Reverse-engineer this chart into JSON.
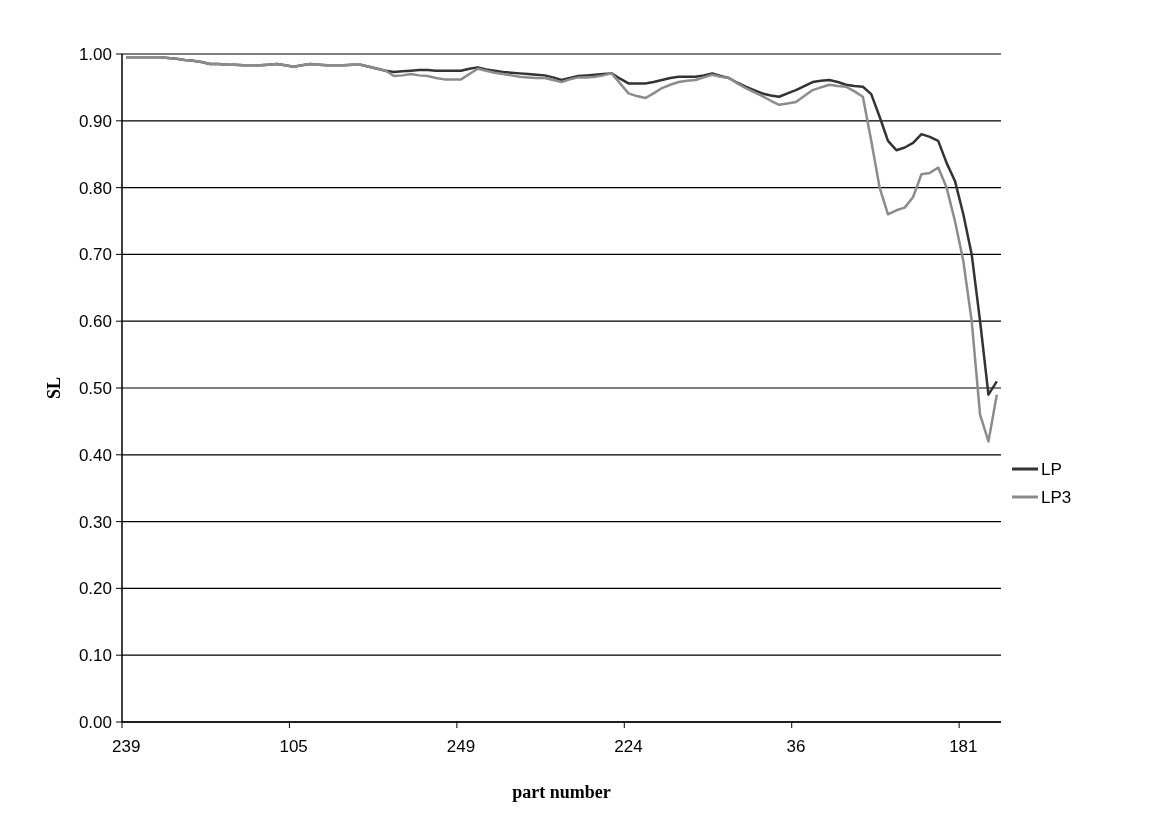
{
  "chart_data": {
    "type": "line",
    "xlabel": "part number",
    "ylabel": "SL",
    "categories": [
      "239",
      null,
      null,
      null,
      null,
      null,
      null,
      null,
      null,
      null,
      null,
      null,
      null,
      null,
      null,
      null,
      null,
      null,
      null,
      null,
      "105",
      null,
      null,
      null,
      null,
      null,
      null,
      null,
      null,
      null,
      null,
      null,
      null,
      null,
      null,
      null,
      null,
      null,
      null,
      null,
      "249",
      null,
      null,
      null,
      null,
      null,
      null,
      null,
      null,
      null,
      null,
      null,
      null,
      null,
      null,
      null,
      null,
      null,
      null,
      null,
      "224",
      null,
      null,
      null,
      null,
      null,
      null,
      null,
      null,
      null,
      null,
      null,
      null,
      null,
      null,
      null,
      null,
      null,
      null,
      null,
      "36",
      null,
      null,
      null,
      null,
      null,
      null,
      null,
      null,
      null,
      null,
      null,
      null,
      null,
      null,
      null,
      null,
      null,
      null,
      null,
      "181",
      null,
      null,
      null,
      null
    ],
    "series": [
      {
        "name": "LP",
        "color": "#333333",
        "values": [
          0.995,
          0.995,
          0.995,
          0.995,
          0.995,
          0.994,
          0.993,
          0.991,
          0.99,
          0.988,
          0.985,
          0.985,
          0.984,
          0.984,
          0.983,
          0.983,
          0.983,
          0.984,
          0.985,
          0.983,
          0.981,
          0.983,
          0.985,
          0.984,
          0.983,
          0.983,
          0.983,
          0.984,
          0.984,
          0.981,
          0.978,
          0.975,
          0.973,
          0.974,
          0.975,
          0.976,
          0.976,
          0.975,
          0.975,
          0.975,
          0.975,
          0.978,
          0.98,
          0.977,
          0.975,
          0.973,
          0.972,
          0.971,
          0.97,
          0.969,
          0.968,
          0.965,
          0.961,
          0.964,
          0.967,
          0.968,
          0.969,
          0.97,
          0.971,
          0.963,
          0.956,
          0.956,
          0.956,
          0.958,
          0.961,
          0.964,
          0.966,
          0.966,
          0.966,
          0.968,
          0.971,
          0.967,
          0.964,
          0.957,
          0.951,
          0.946,
          0.941,
          0.938,
          0.936,
          0.941,
          0.946,
          0.952,
          0.958,
          0.96,
          0.961,
          0.958,
          0.954,
          0.952,
          0.951,
          0.94,
          0.906,
          0.87,
          0.856,
          0.86,
          0.867,
          0.88,
          0.876,
          0.87,
          0.837,
          0.81,
          0.76,
          0.7,
          0.6,
          0.49,
          0.51
        ]
      },
      {
        "name": "LP3",
        "color": "#8c8c8c",
        "values": [
          0.995,
          0.995,
          0.995,
          0.995,
          0.995,
          0.994,
          0.993,
          0.991,
          0.99,
          0.988,
          0.985,
          0.985,
          0.984,
          0.984,
          0.983,
          0.983,
          0.983,
          0.984,
          0.985,
          0.983,
          0.981,
          0.983,
          0.985,
          0.984,
          0.983,
          0.983,
          0.983,
          0.984,
          0.984,
          0.981,
          0.978,
          0.975,
          0.967,
          0.968,
          0.97,
          0.968,
          0.967,
          0.964,
          0.962,
          0.962,
          0.962,
          0.97,
          0.978,
          0.975,
          0.972,
          0.97,
          0.968,
          0.966,
          0.965,
          0.964,
          0.964,
          0.961,
          0.958,
          0.962,
          0.965,
          0.965,
          0.966,
          0.968,
          0.971,
          0.956,
          0.941,
          0.937,
          0.934,
          0.941,
          0.949,
          0.954,
          0.958,
          0.96,
          0.961,
          0.965,
          0.969,
          0.966,
          0.964,
          0.956,
          0.949,
          0.943,
          0.937,
          0.93,
          0.924,
          0.926,
          0.928,
          0.937,
          0.946,
          0.95,
          0.954,
          0.952,
          0.951,
          0.944,
          0.936,
          0.87,
          0.8,
          0.76,
          0.766,
          0.77,
          0.786,
          0.82,
          0.822,
          0.83,
          0.8,
          0.75,
          0.69,
          0.6,
          0.46,
          0.42,
          0.49
        ]
      }
    ],
    "ylim": [
      0,
      1
    ],
    "yticks": [
      {
        "value": 0,
        "label": "0.00"
      },
      {
        "value": 0.1,
        "label": "0.10"
      },
      {
        "value": 0.2,
        "label": "0.20"
      },
      {
        "value": 0.3,
        "label": "0.30"
      },
      {
        "value": 0.4,
        "label": "0.40"
      },
      {
        "value": 0.5,
        "label": "0.50"
      },
      {
        "value": 0.6,
        "label": "0.60"
      },
      {
        "value": 0.7,
        "label": "0.70"
      },
      {
        "value": 0.8,
        "label": "0.80"
      },
      {
        "value": 0.9,
        "label": "0.90"
      },
      {
        "value": 1,
        "label": "1.00"
      }
    ],
    "grid": "y",
    "legend": "right",
    "marker": "none",
    "line_style": "solid"
  }
}
